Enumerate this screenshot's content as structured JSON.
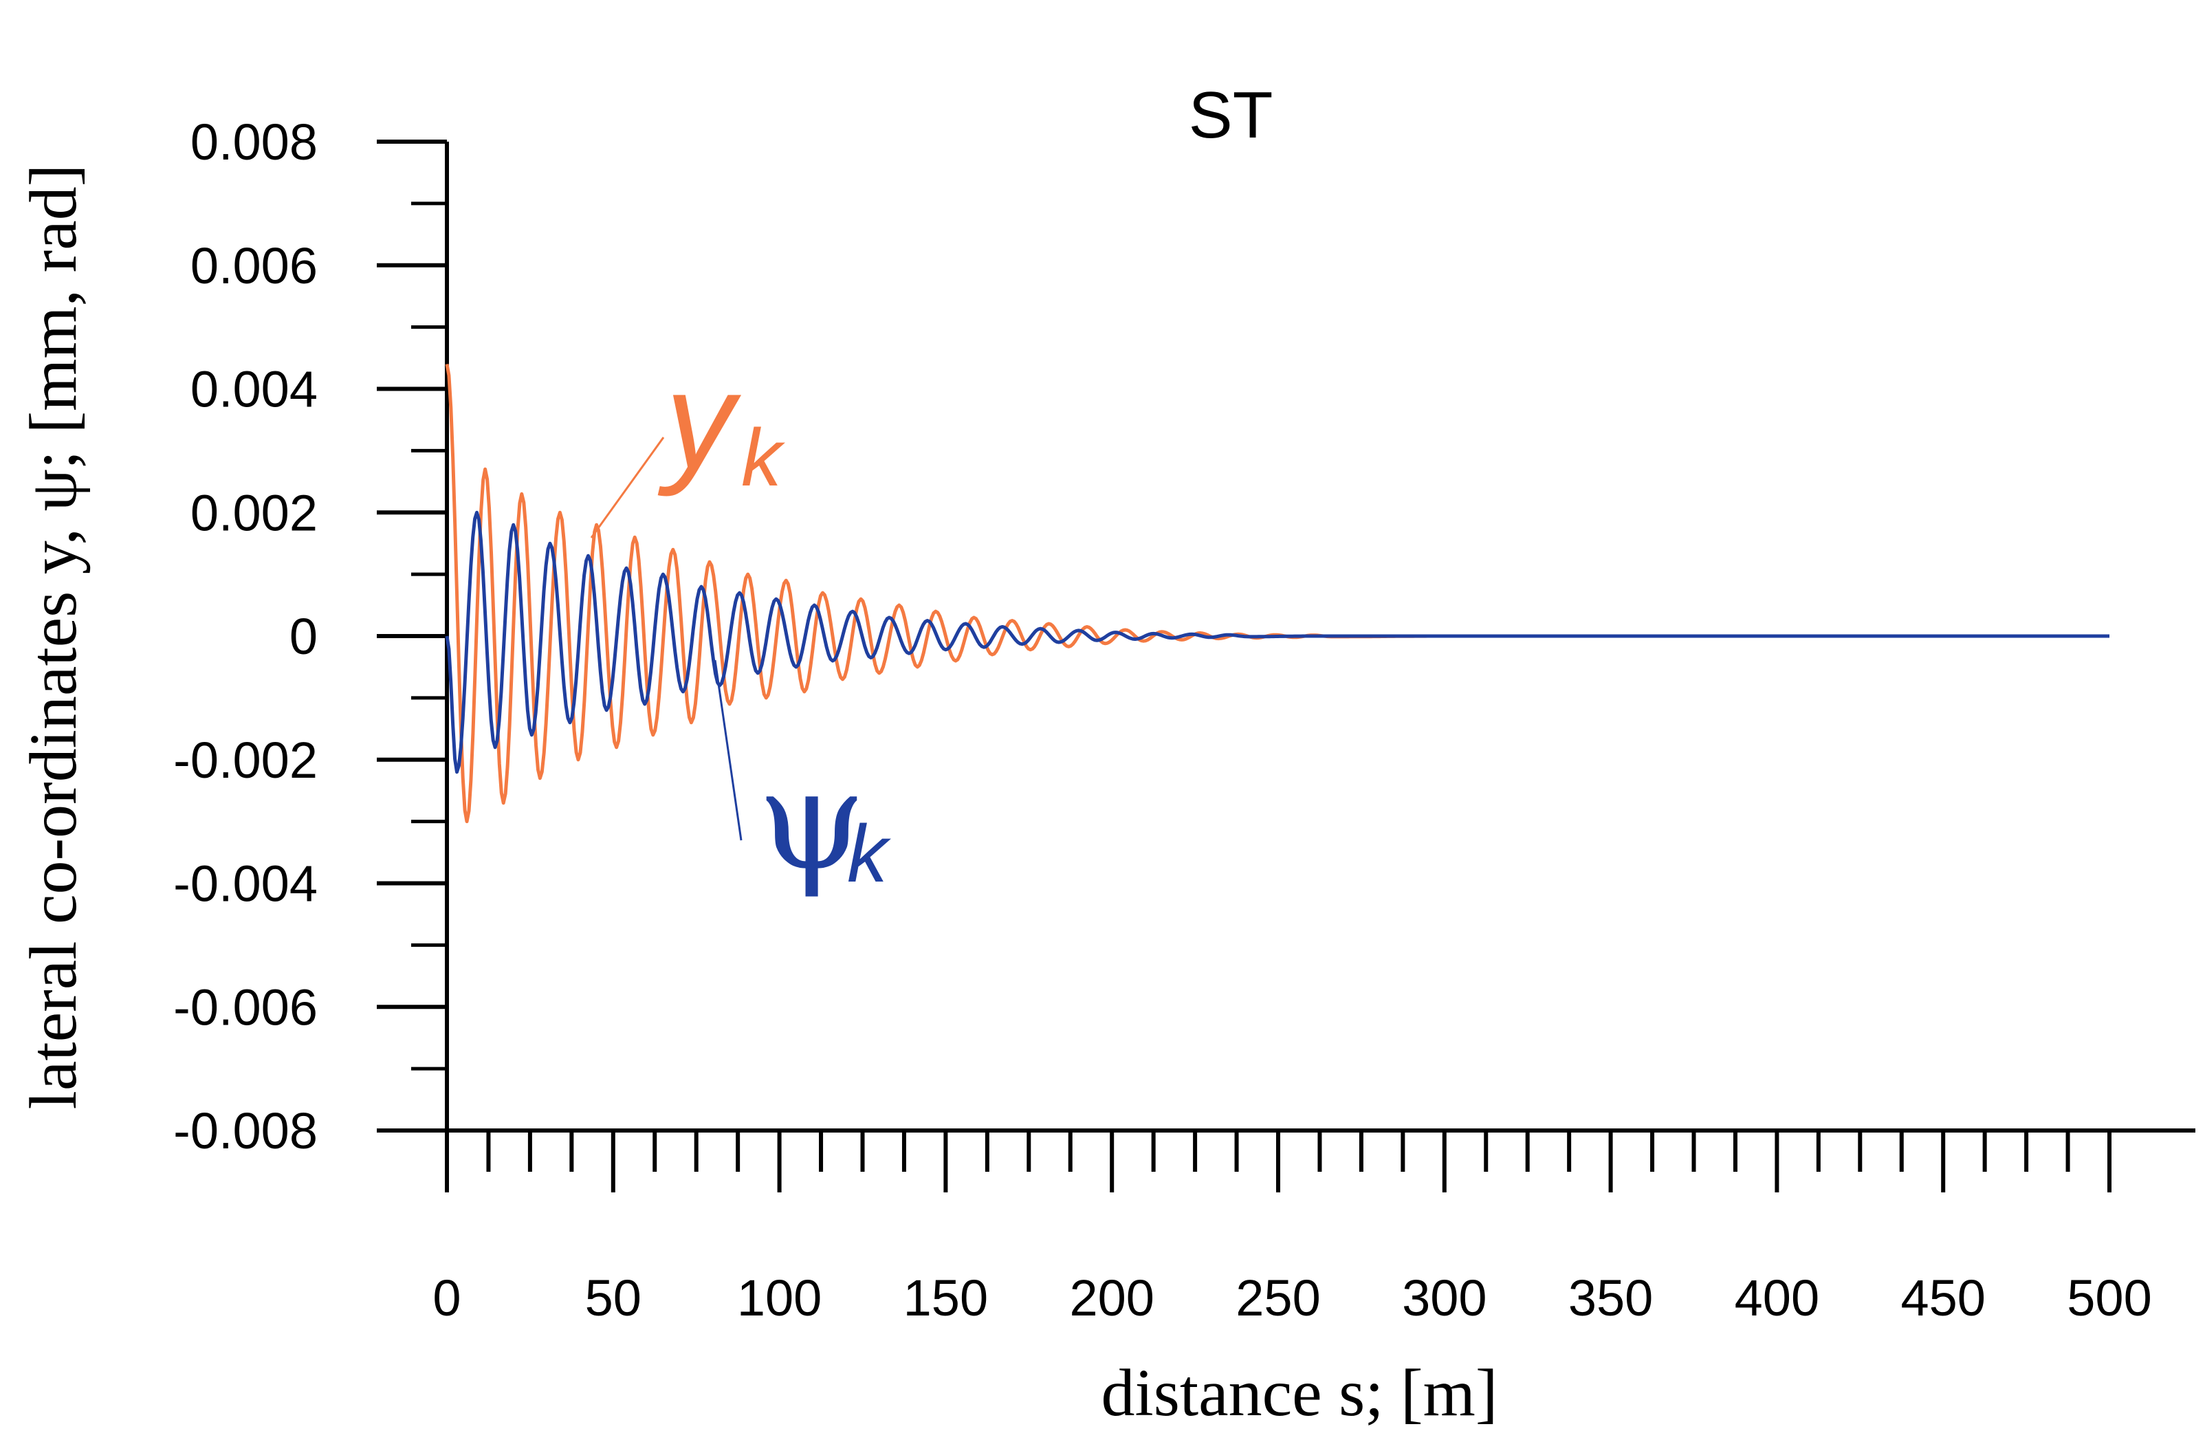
{
  "chart_data": {
    "type": "line",
    "title": "ST",
    "xlabel": "distance s; [m]",
    "ylabel": "lateral co-ordinates y, ψ; [mm, rad]",
    "xlim": [
      0,
      500
    ],
    "ylim": [
      -0.008,
      0.008
    ],
    "x_ticks": [
      "0",
      "50",
      "100",
      "150",
      "200",
      "250",
      "300",
      "350",
      "400",
      "450",
      "500"
    ],
    "y_ticks": [
      "0.008",
      "0.006",
      "0.004",
      "0.002",
      "0",
      "-0.002",
      "-0.004",
      "-0.006",
      "-0.008"
    ],
    "grid": false,
    "series": [
      {
        "name": "yk",
        "label_main": "y",
        "label_sub": "k",
        "color": "#F47A42",
        "peaks": [
          [
            0,
            0.0044
          ],
          [
            6,
            -0.003
          ],
          [
            11.5,
            0.0027
          ],
          [
            17,
            -0.0027
          ],
          [
            22.5,
            0.0023
          ],
          [
            28,
            -0.0023
          ],
          [
            34,
            0.002
          ],
          [
            39.5,
            -0.002
          ],
          [
            45,
            0.0018
          ],
          [
            51,
            -0.0018
          ],
          [
            56.5,
            0.0016
          ],
          [
            62,
            -0.0016
          ],
          [
            68,
            0.0014
          ],
          [
            73.5,
            -0.0014
          ],
          [
            79,
            0.0012
          ],
          [
            85,
            -0.0011
          ],
          [
            90.5,
            0.001
          ],
          [
            96,
            -0.001
          ],
          [
            102,
            0.0009
          ],
          [
            107.5,
            -0.0009
          ],
          [
            113,
            0.0007
          ],
          [
            119,
            -0.0007
          ],
          [
            124.5,
            0.0006
          ],
          [
            130,
            -0.0006
          ],
          [
            136,
            0.0005
          ],
          [
            141.5,
            -0.0005
          ],
          [
            147,
            0.0004
          ],
          [
            153,
            -0.0004
          ],
          [
            158.5,
            0.0003
          ],
          [
            164,
            -0.0003
          ],
          [
            170,
            0.00025
          ],
          [
            175.5,
            -0.00022
          ],
          [
            181,
            0.0002
          ],
          [
            187,
            -0.00017
          ],
          [
            192.5,
            0.00015
          ],
          [
            198,
            -0.00012
          ],
          [
            204,
            0.0001
          ],
          [
            209.5,
            -8e-05
          ],
          [
            215,
            7e-05
          ],
          [
            221,
            -6e-05
          ],
          [
            226.5,
            5e-05
          ],
          [
            232,
            -4e-05
          ],
          [
            238,
            3e-05
          ],
          [
            243.5,
            -3e-05
          ],
          [
            249,
            2e-05
          ],
          [
            255,
            -2e-05
          ],
          [
            260.5,
            1.5e-05
          ],
          [
            266,
            -1e-05
          ],
          [
            300,
            0
          ],
          [
            500,
            0
          ]
        ]
      },
      {
        "name": "ψk",
        "label_main": "ψ",
        "label_sub": "k",
        "color": "#1F3F9F",
        "peaks": [
          [
            0,
            0.0
          ],
          [
            3,
            -0.0022
          ],
          [
            9,
            0.002
          ],
          [
            14.5,
            -0.0018
          ],
          [
            20,
            0.0018
          ],
          [
            25.5,
            -0.0016
          ],
          [
            31,
            0.0015
          ],
          [
            37,
            -0.0014
          ],
          [
            42.5,
            0.0013
          ],
          [
            48,
            -0.0012
          ],
          [
            54,
            0.0011
          ],
          [
            59.5,
            -0.0011
          ],
          [
            65,
            0.001
          ],
          [
            71,
            -0.0009
          ],
          [
            76.5,
            0.0008
          ],
          [
            82,
            -0.0008
          ],
          [
            88,
            0.0007
          ],
          [
            93.5,
            -0.0006
          ],
          [
            99,
            0.0006
          ],
          [
            105,
            -0.0005
          ],
          [
            110.5,
            0.0005
          ],
          [
            116,
            -0.0004
          ],
          [
            122,
            0.0004
          ],
          [
            127.5,
            -0.00035
          ],
          [
            133,
            0.0003
          ],
          [
            139,
            -0.00028
          ],
          [
            144.5,
            0.00025
          ],
          [
            150,
            -0.00022
          ],
          [
            156,
            0.0002
          ],
          [
            161.5,
            -0.00018
          ],
          [
            167,
            0.00015
          ],
          [
            173,
            -0.00013
          ],
          [
            178.5,
            0.00012
          ],
          [
            184,
            -0.0001
          ],
          [
            190,
            9e-05
          ],
          [
            195.5,
            -7e-05
          ],
          [
            201,
            6e-05
          ],
          [
            207,
            -5e-05
          ],
          [
            212.5,
            4e-05
          ],
          [
            218,
            -3e-05
          ],
          [
            224,
            3e-05
          ],
          [
            229.5,
            -2e-05
          ],
          [
            235,
            2e-05
          ],
          [
            241,
            -1e-05
          ],
          [
            260,
            0
          ],
          [
            500,
            0
          ]
        ]
      }
    ]
  }
}
